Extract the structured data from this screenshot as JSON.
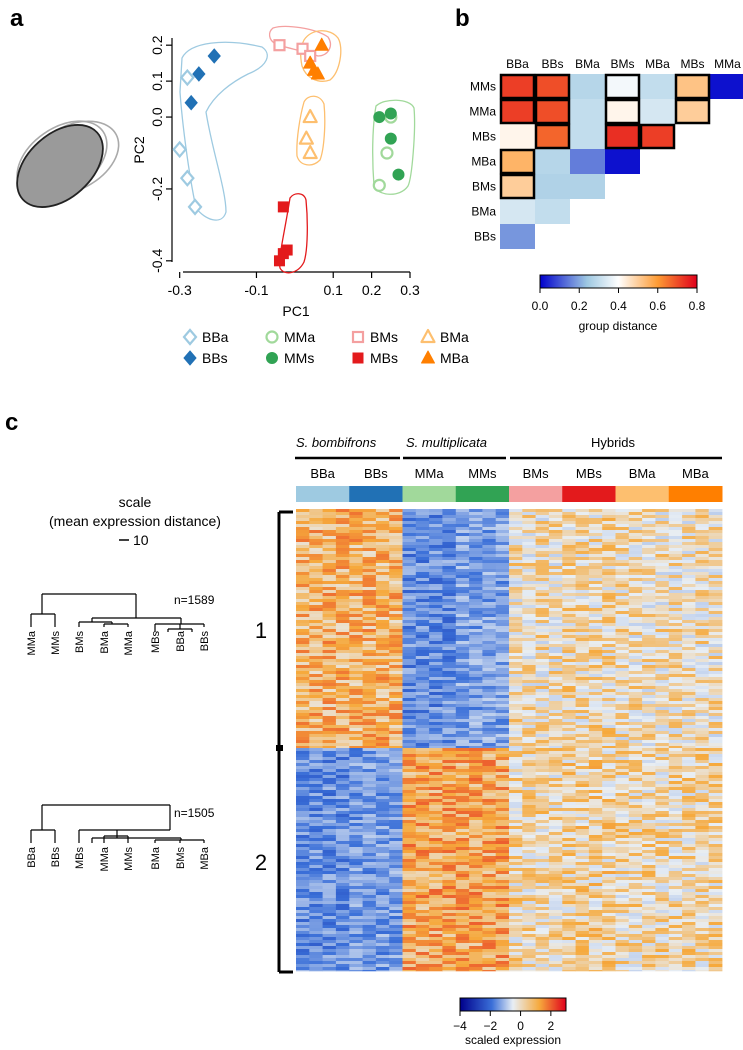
{
  "panels": {
    "a": "a",
    "b": "b",
    "c": "c"
  },
  "colors": {
    "BBa": "#9ecae1",
    "BBs": "#2171b5",
    "MMa": "#a1d99b",
    "MMs": "#31a354",
    "BMs": "#f4a0a0",
    "MBs": "#e31a1c",
    "BMa": "#fdbf6f",
    "MBa": "#ff7f00",
    "hull_BB": "#9ecae1",
    "hull_MM": "#a1d99b",
    "hull_BM": "#f4a0a0",
    "hull_MB": "#e31a1c",
    "hull_BMa": "#fdbf6f",
    "hull_MBa": "#ff9c33"
  },
  "pca": {
    "xlabel": "PC1",
    "ylabel": "PC2",
    "xticks": [
      "-0.3",
      "-0.1",
      "0.1",
      "0.2",
      "0.3"
    ],
    "xtick_values": [
      -0.3,
      -0.1,
      0.1,
      0.2,
      0.3
    ],
    "xlim": [
      -0.32,
      0.3
    ],
    "yticks": [
      "0.2",
      "0.1",
      "0.0",
      "-0.2",
      "-0.4"
    ],
    "ytick_values": [
      0.2,
      0.1,
      0.0,
      -0.2,
      -0.4
    ],
    "ylim": [
      -0.42,
      0.22
    ],
    "legend": {
      "row1": [
        "BBa",
        "MMa",
        "BMs",
        "BMa"
      ],
      "row2": [
        "BBs",
        "MMs",
        "MBs",
        "MBa"
      ]
    }
  },
  "chart_data": [
    {
      "type": "scatter",
      "title": "",
      "xlabel": "PC1",
      "ylabel": "PC2",
      "xlim": [
        -0.32,
        0.3
      ],
      "ylim": [
        -0.42,
        0.22
      ],
      "series": [
        {
          "name": "BBa",
          "shape": "diamond-open",
          "points": [
            [
              -0.28,
              0.11
            ],
            [
              -0.3,
              -0.09
            ],
            [
              -0.28,
              -0.17
            ],
            [
              -0.26,
              -0.25
            ]
          ]
        },
        {
          "name": "BBs",
          "shape": "diamond-filled",
          "points": [
            [
              -0.25,
              0.12
            ],
            [
              -0.21,
              0.17
            ],
            [
              -0.27,
              0.04
            ]
          ]
        },
        {
          "name": "MMa",
          "shape": "circle-open",
          "points": [
            [
              0.22,
              -0.19
            ],
            [
              0.24,
              -0.1
            ],
            [
              0.25,
              0.0
            ]
          ]
        },
        {
          "name": "MMs",
          "shape": "circle-filled",
          "points": [
            [
              0.22,
              0.0
            ],
            [
              0.25,
              0.01
            ],
            [
              0.25,
              -0.06
            ],
            [
              0.27,
              -0.16
            ]
          ]
        },
        {
          "name": "BMs",
          "shape": "square-open",
          "points": [
            [
              -0.04,
              0.2
            ],
            [
              0.02,
              0.19
            ],
            [
              0.04,
              0.17
            ]
          ]
        },
        {
          "name": "MBs",
          "shape": "square-filled",
          "points": [
            [
              -0.03,
              -0.25
            ],
            [
              -0.02,
              -0.37
            ],
            [
              -0.03,
              -0.38
            ],
            [
              -0.04,
              -0.4
            ]
          ]
        },
        {
          "name": "BMa",
          "shape": "triangle-open",
          "points": [
            [
              0.04,
              0.0
            ],
            [
              0.03,
              -0.06
            ],
            [
              0.04,
              -0.1
            ]
          ]
        },
        {
          "name": "MBa",
          "shape": "triangle-filled",
          "points": [
            [
              0.07,
              0.2
            ],
            [
              0.04,
              0.15
            ],
            [
              0.05,
              0.13
            ],
            [
              0.06,
              0.12
            ]
          ]
        }
      ]
    },
    {
      "type": "heatmap",
      "title": "group distance",
      "columns": [
        "BBa",
        "BBs",
        "BMa",
        "BMs",
        "MBa",
        "MBs",
        "MMa"
      ],
      "rows": [
        "MMs",
        "MMa",
        "MBs",
        "MBa",
        "BMs",
        "BMa",
        "BBs"
      ],
      "colorbar": {
        "label": "group distance",
        "ticks": [
          "0.0",
          "0.2",
          "0.4",
          "0.6",
          "0.8"
        ],
        "range": [
          0,
          0.8
        ]
      },
      "values": [
        [
          0.72,
          0.7,
          0.28,
          0.38,
          0.3,
          0.52,
          0.02
        ],
        [
          0.72,
          0.7,
          0.3,
          0.42,
          0.33,
          0.5
        ],
        [
          0.42,
          0.67,
          0.3,
          0.74,
          0.72
        ],
        [
          0.55,
          0.28,
          0.15,
          0.02
        ],
        [
          0.5,
          0.27,
          0.27
        ],
        [
          0.33,
          0.3
        ],
        [
          0.18
        ]
      ],
      "boxed": [
        [
          0,
          0
        ],
        [
          0,
          1
        ],
        [
          0,
          3
        ],
        [
          0,
          5
        ],
        [
          1,
          0
        ],
        [
          1,
          1
        ],
        [
          1,
          3
        ],
        [
          1,
          5
        ],
        [
          2,
          1
        ],
        [
          2,
          3
        ],
        [
          2,
          4
        ],
        [
          3,
          0
        ],
        [
          4,
          0
        ]
      ]
    },
    {
      "type": "heatmap",
      "title": "scaled expression",
      "groups": [
        "S. bombifrons",
        "S. multiplicata",
        "Hybrids"
      ],
      "columns": [
        "BBa",
        "BBs",
        "MMa",
        "MMs",
        "BMs",
        "MBs",
        "BMa",
        "MBa"
      ],
      "clusters": [
        {
          "label": "1",
          "n": "n=1589",
          "BBa": 1.0,
          "BBs": 1.0,
          "MMa": -1.5,
          "MMs": -1.2,
          "BMs": 0.3,
          "MBs": 0.4,
          "BMa": 0.3,
          "MBa": 0.3
        },
        {
          "label": "2",
          "n": "n=1505",
          "BBa": -1.5,
          "BBs": -1.3,
          "MMa": 1.2,
          "MMs": 1.2,
          "BMs": 0.4,
          "MBs": 0.5,
          "BMa": 0.4,
          "MBa": 0.4
        }
      ],
      "colorbar": {
        "label": "scaled expression",
        "ticks": [
          "-4",
          "-2",
          "0",
          "2"
        ],
        "range": [
          -4,
          3
        ]
      }
    }
  ],
  "heatmap_b": {
    "colorbar_label": "group distance"
  },
  "panel_c": {
    "groups": [
      "S. bombifrons",
      "S. multiplicata",
      "Hybrids"
    ],
    "columns": [
      "BBa",
      "BBs",
      "MMa",
      "MMs",
      "BMs",
      "MBs",
      "BMa",
      "MBa"
    ],
    "scale_title": "scale",
    "scale_subtitle": "(mean expression distance)",
    "scale_value": "10",
    "cluster_labels": [
      "1",
      "2"
    ],
    "dend1_n": "n=1589",
    "dend1_leaves": [
      "MMa",
      "MMs",
      "BMs",
      "BMa",
      "MMa",
      "MBs",
      "BBa",
      "BBs"
    ],
    "dend2_n": "n=1505",
    "dend2_leaves": [
      "BBa",
      "BBs",
      "MBs",
      "MMa",
      "MMs",
      "BMa",
      "BMs",
      "MBa"
    ],
    "colorbar_label": "scaled expression",
    "colorbar_ticks": [
      "-4",
      "-2",
      "0",
      "2"
    ]
  }
}
